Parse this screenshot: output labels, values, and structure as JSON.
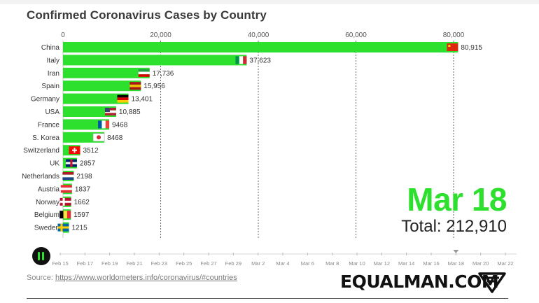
{
  "chart_data": {
    "type": "bar",
    "title": "Confirmed Coronavirus Cases by Country",
    "categories": [
      "China",
      "Italy",
      "Iran",
      "Spain",
      "Germany",
      "USA",
      "France",
      "S. Korea",
      "Switzerland",
      "UK",
      "Netherlands",
      "Austria",
      "Norway",
      "Belgium",
      "Sweden"
    ],
    "visible_labels": [
      "China",
      "Italy",
      "Iran",
      "Spain",
      "Germany",
      "USA",
      "France",
      "S. Korea",
      "Switzerland",
      "UK",
      "Netherlands",
      "Austria",
      "Norway",
      "Belgium",
      "Sweden"
    ],
    "values": [
      80915,
      37623,
      17736,
      15956,
      13401,
      10885,
      9468,
      8468,
      3512,
      2857,
      2198,
      1837,
      1662,
      1597,
      1215
    ],
    "value_labels": [
      "80,915",
      "37,623",
      "17,736",
      "15,956",
      "13,401",
      "10,885",
      "9468",
      "8468",
      "3512",
      "2857",
      "2198",
      "1837",
      "1662",
      "1597",
      "1215"
    ],
    "flags": [
      "china-flag-icon",
      "italy-flag-icon",
      "iran-flag-icon",
      "spain-flag-icon",
      "germany-flag-icon",
      "usa-flag-icon",
      "france-flag-icon",
      "south-korea-flag-icon",
      "switzerland-flag-icon",
      "uk-flag-icon",
      "netherlands-flag-icon",
      "austria-flag-icon",
      "norway-flag-icon",
      "belgium-flag-icon",
      "sweden-flag-icon"
    ],
    "xlim": [
      0,
      86000
    ],
    "x_ticks": [
      0,
      20000,
      40000,
      60000,
      80000
    ],
    "x_tick_labels": [
      "0",
      "20,000",
      "40,000",
      "60,000",
      "80,000"
    ],
    "grid": true,
    "bar_color": "#2ee02e"
  },
  "header": {
    "title": "Confirmed Coronavirus Cases by Country"
  },
  "overlay": {
    "date": "Mar 18",
    "total": "Total: 212,910"
  },
  "timeline": {
    "ticks": [
      "Feb 15",
      "Feb 17",
      "Feb 19",
      "Feb 21",
      "Feb 23",
      "Feb 25",
      "Feb 27",
      "Feb 29",
      "Mar 2",
      "Mar 4",
      "Mar 6",
      "Mar 8",
      "Mar 10",
      "Mar 12",
      "Mar 14",
      "Mar 16",
      "Mar 18",
      "Mar 20",
      "Mar 22"
    ],
    "current_index": 16,
    "play_state": "playing"
  },
  "footer": {
    "source_prefix": "Source: ",
    "source_link": "https://www.worldometers.info/coronavirus/#countries",
    "brand": "EQUALMAN.COM"
  },
  "colors": {
    "accent": "#2ee02e",
    "text": "#3a3a3a"
  }
}
